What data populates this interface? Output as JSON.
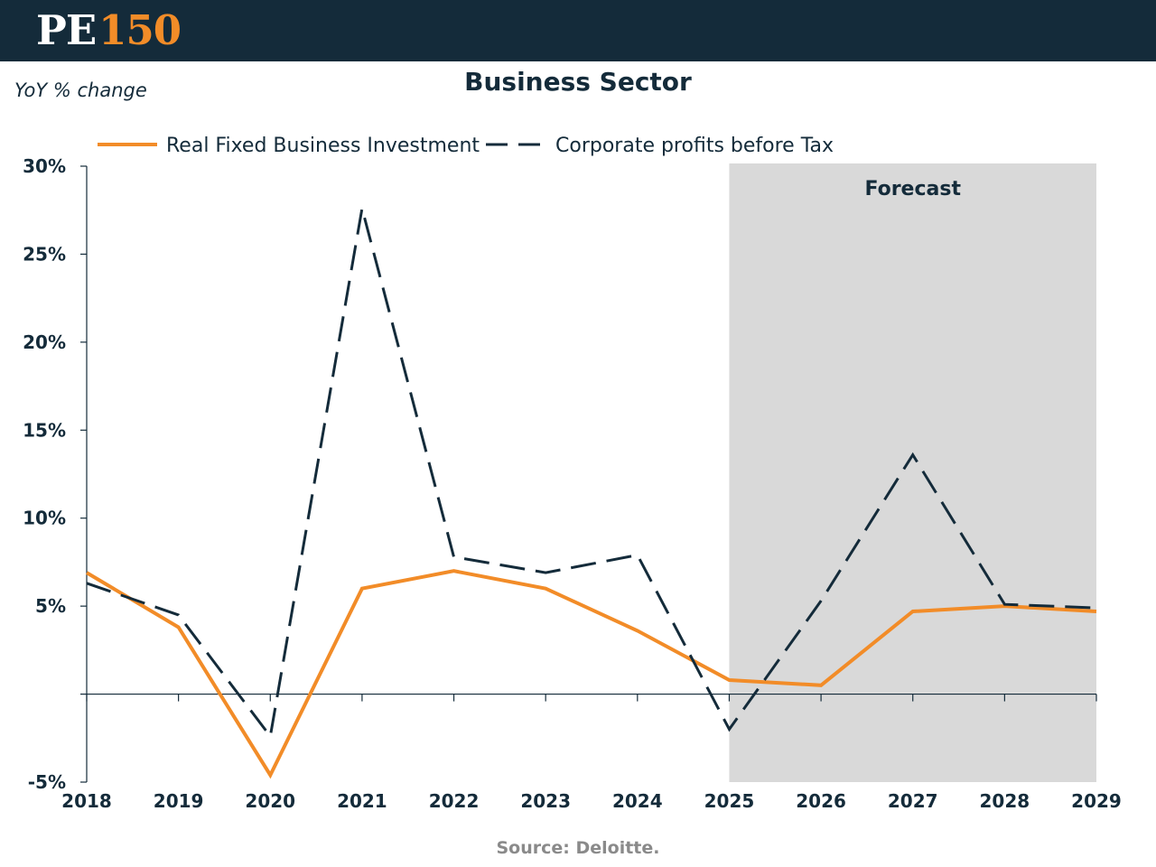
{
  "brand": {
    "logo_pe": "PE",
    "logo_num": "150"
  },
  "colors": {
    "header_bg": "#142b3a",
    "logo_accent": "#f28c28",
    "investment_line": "#f28c28",
    "profits_line": "#142b3a",
    "forecast_band": "#d9d9d9",
    "source_text": "#8a8a8a"
  },
  "source": "Source: Deloitte.",
  "chart_data": {
    "type": "line",
    "title": "Business Sector",
    "ylabel": "YoY % change",
    "xlabel": "",
    "x": [
      "2018",
      "2019",
      "2020",
      "2021",
      "2022",
      "2023",
      "2024",
      "2025",
      "2026",
      "2027",
      "2028",
      "2029"
    ],
    "ylim": [
      -5,
      30
    ],
    "yticks": [
      -5,
      5,
      10,
      15,
      20,
      25,
      30
    ],
    "ytick_labels": [
      "-5%",
      "5%",
      "10%",
      "15%",
      "20%",
      "25%",
      "30%"
    ],
    "legend_position": "top-left",
    "grid": false,
    "series": [
      {
        "name": "Real Fixed Business Investment",
        "style": "solid",
        "color": "#f28c28",
        "values": [
          6.9,
          3.8,
          -4.6,
          6.0,
          7.0,
          6.0,
          3.6,
          0.8,
          0.5,
          4.7,
          5.0,
          4.7
        ]
      },
      {
        "name": "Corporate profits before Tax",
        "style": "dashed",
        "color": "#142b3a",
        "values": [
          6.3,
          4.5,
          -2.4,
          27.6,
          7.8,
          6.9,
          7.9,
          -2.0,
          5.3,
          13.6,
          5.1,
          4.9
        ]
      }
    ],
    "forecast": {
      "label": "Forecast",
      "from": "2025",
      "to": "2029"
    }
  }
}
